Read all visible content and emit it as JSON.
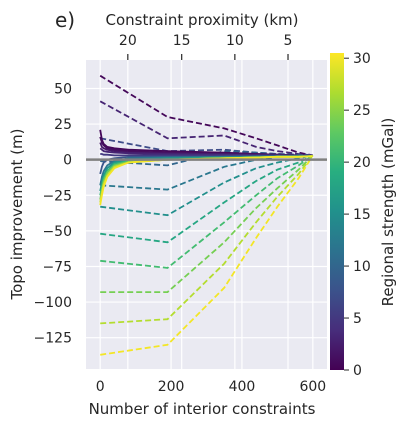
{
  "panel_label": "e)",
  "chart_data": {
    "type": "line",
    "xlabel": "Number of interior constraints",
    "ylabel": "Topo improvement (m)",
    "top_xlabel": "Constraint proximity (km)",
    "colorbar_label": "Regional strength (mGal)",
    "xlim": [
      -40,
      640
    ],
    "ylim": [
      -147,
      70
    ],
    "xticks": [
      0,
      200,
      400,
      600
    ],
    "xtick_labels": [
      "0",
      "200",
      "400",
      "600"
    ],
    "yticks": [
      50,
      25,
      0,
      -25,
      -50,
      -75,
      -100,
      -125
    ],
    "ytick_labels": [
      "50",
      "25",
      "0",
      "−25",
      "−50",
      "−75",
      "−100",
      "−125"
    ],
    "top_ticks": [
      {
        "x": 78,
        "label": "20"
      },
      {
        "x": 230,
        "label": "15"
      },
      {
        "x": 380,
        "label": "10"
      },
      {
        "x": 530,
        "label": "5"
      }
    ],
    "colorbar": {
      "min": 0,
      "max": 30.5,
      "ticks": [
        0,
        5,
        10,
        15,
        20,
        25,
        30
      ],
      "tick_labels": [
        "0",
        "5",
        "10",
        "15",
        "20",
        "25",
        "30"
      ],
      "colormap": "viridis"
    },
    "zero_line": {
      "y": 0,
      "color": "#808080"
    },
    "grid": true,
    "x": [
      0,
      5,
      10,
      20,
      40,
      80,
      190,
      350,
      440,
      500,
      560,
      600
    ],
    "solid_series": [
      {
        "strength": 0.5,
        "values": [
          21,
          14,
          11,
          9,
          8,
          7,
          6,
          5,
          4,
          3.5,
          3,
          3
        ]
      },
      {
        "strength": 1,
        "values": [
          16,
          12,
          10,
          8,
          7,
          6,
          5,
          4.5,
          4,
          3.5,
          3,
          3
        ]
      },
      {
        "strength": 2,
        "values": [
          12,
          9,
          8,
          7,
          6,
          5,
          4.5,
          4,
          3.5,
          3,
          3,
          3
        ]
      },
      {
        "strength": 3,
        "values": [
          8,
          7,
          6,
          5.5,
          5,
          4.5,
          4,
          3.5,
          3,
          3,
          3,
          3
        ]
      },
      {
        "strength": 5,
        "values": [
          4,
          4,
          3.5,
          3.5,
          3,
          3,
          3,
          3,
          3,
          3,
          3,
          3
        ]
      },
      {
        "strength": 8,
        "values": [
          -10,
          -5,
          -2,
          0,
          1,
          2,
          2,
          2,
          2.5,
          2.5,
          2.5,
          2.5
        ]
      },
      {
        "strength": 12,
        "values": [
          -18,
          -12,
          -8,
          -4,
          -1,
          1,
          1.5,
          2,
          2,
          2.5,
          2.5,
          2.5
        ]
      },
      {
        "strength": 16,
        "values": [
          -22,
          -16,
          -11,
          -6,
          -2,
          0,
          1,
          1.5,
          2,
          2,
          2.5,
          2.5
        ]
      },
      {
        "strength": 20,
        "values": [
          -25,
          -19,
          -13,
          -8,
          -3,
          -1,
          0.5,
          1,
          1.5,
          2,
          2,
          2.5
        ]
      },
      {
        "strength": 24,
        "values": [
          -28,
          -21,
          -15,
          -9,
          -4,
          -1.5,
          0,
          1,
          1.5,
          2,
          2,
          2.5
        ]
      },
      {
        "strength": 28,
        "values": [
          -30,
          -23,
          -17,
          -11,
          -5,
          -2,
          0,
          1,
          1.5,
          2,
          2,
          2.5
        ]
      },
      {
        "strength": 30,
        "values": [
          -32,
          -25,
          -19,
          -12,
          -6,
          -2,
          0,
          1,
          1.5,
          2,
          2,
          2.5
        ]
      }
    ],
    "dashed_series": [
      {
        "strength": 0.5,
        "x": [
          0,
          190,
          350,
          440,
          500,
          560,
          600
        ],
        "values": [
          59,
          30,
          22,
          15,
          10,
          5,
          3
        ]
      },
      {
        "strength": 3,
        "x": [
          0,
          190,
          350,
          440,
          500,
          560,
          600
        ],
        "values": [
          41,
          15,
          17,
          9,
          6,
          4,
          3
        ]
      },
      {
        "strength": 7,
        "x": [
          0,
          190,
          350,
          440,
          500,
          560,
          600
        ],
        "values": [
          15,
          6,
          7,
          5,
          4,
          3.5,
          3
        ]
      },
      {
        "strength": 10,
        "x": [
          0,
          190,
          350,
          440,
          500,
          560,
          600
        ],
        "values": [
          -1,
          -4,
          6,
          5,
          4,
          3.5,
          3
        ]
      },
      {
        "strength": 12,
        "x": [
          0,
          190,
          350,
          440,
          500,
          560,
          600
        ],
        "values": [
          -18,
          -21,
          -5,
          0,
          2,
          2.5,
          3
        ]
      },
      {
        "strength": 15,
        "x": [
          0,
          190,
          350,
          440,
          500,
          560,
          600
        ],
        "values": [
          -33,
          -39,
          -16,
          -6,
          -2,
          1,
          3
        ]
      },
      {
        "strength": 18,
        "x": [
          0,
          190,
          350,
          440,
          500,
          560,
          600
        ],
        "values": [
          -52,
          -58,
          -30,
          -15,
          -7,
          -2,
          3
        ]
      },
      {
        "strength": 21,
        "x": [
          0,
          190,
          350,
          440,
          500,
          560,
          600
        ],
        "values": [
          -71,
          -76,
          -44,
          -25,
          -13,
          -4,
          3
        ]
      },
      {
        "strength": 24,
        "x": [
          0,
          190,
          350,
          440,
          500,
          560,
          600
        ],
        "values": [
          -93,
          -93,
          -58,
          -34,
          -20,
          -7,
          3
        ]
      },
      {
        "strength": 27,
        "x": [
          0,
          190,
          350,
          440,
          500,
          560,
          600
        ],
        "values": [
          -115,
          -112,
          -73,
          -44,
          -26,
          -10,
          3
        ]
      },
      {
        "strength": 30,
        "x": [
          0,
          190,
          350,
          440,
          500,
          560,
          600
        ],
        "values": [
          -137,
          -130,
          -90,
          -55,
          -33,
          -13,
          3
        ]
      }
    ]
  }
}
